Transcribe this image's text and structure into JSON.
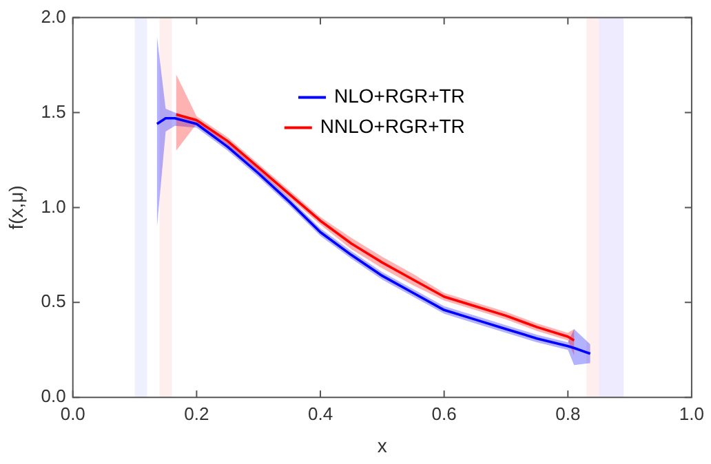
{
  "chart_data": {
    "type": "line",
    "xlabel": "x",
    "ylabel": "f(x,μ)",
    "xlim": [
      0,
      1
    ],
    "xticks": [
      {
        "value": 0,
        "label": "0.0"
      },
      {
        "value": 0.2,
        "label": "0.2"
      },
      {
        "value": 0.4,
        "label": "0.4"
      },
      {
        "value": 0.6,
        "label": "0.6"
      },
      {
        "value": 0.8,
        "label": "0.8"
      },
      {
        "value": 1,
        "label": "1.0"
      }
    ],
    "ylim": [
      0,
      2
    ],
    "yticks": [
      {
        "value": 0,
        "label": "0.0"
      },
      {
        "value": 0.5,
        "label": "0.5"
      },
      {
        "value": 1,
        "label": "1.0"
      },
      {
        "value": 1.5,
        "label": "1.5"
      },
      {
        "value": 2,
        "label": "2.0"
      }
    ],
    "grid": false,
    "legend": "top",
    "line_style": "solid",
    "marker": "none",
    "bands": [
      {
        "axis": "x",
        "from": 0.1,
        "to": 0.12,
        "color": "#eef0ff"
      },
      {
        "axis": "x",
        "from": 0.14,
        "to": 0.16,
        "color": "#ffeeee"
      },
      {
        "axis": "x",
        "from": 0.83,
        "to": 0.87,
        "color": "#ffeeee"
      },
      {
        "axis": "x",
        "from": 0.85,
        "to": 0.89,
        "color": "#eeeaff"
      }
    ],
    "series": [
      {
        "name": "NLO+RGR+TR",
        "color": "#0000ff",
        "x": [
          0.136,
          0.15,
          0.165,
          0.2,
          0.25,
          0.3,
          0.35,
          0.4,
          0.45,
          0.5,
          0.55,
          0.6,
          0.65,
          0.7,
          0.75,
          0.8,
          0.81,
          0.836
        ],
        "values": [
          1.44,
          1.47,
          1.47,
          1.44,
          1.32,
          1.18,
          1.03,
          0.87,
          0.75,
          0.64,
          0.55,
          0.46,
          0.41,
          0.36,
          0.31,
          0.27,
          0.26,
          0.23
        ],
        "lower": [
          0.9,
          1.4,
          1.43,
          1.42,
          1.3,
          1.16,
          1.01,
          0.85,
          0.73,
          0.62,
          0.53,
          0.44,
          0.39,
          0.34,
          0.29,
          0.25,
          0.17,
          0.18
        ],
        "upper": [
          1.9,
          1.52,
          1.5,
          1.46,
          1.34,
          1.2,
          1.05,
          0.89,
          0.77,
          0.66,
          0.57,
          0.48,
          0.43,
          0.38,
          0.33,
          0.29,
          0.36,
          0.28
        ]
      },
      {
        "name": "NNLO+RGR+TR",
        "color": "#ff0000",
        "x": [
          0.167,
          0.2,
          0.25,
          0.3,
          0.35,
          0.4,
          0.45,
          0.5,
          0.55,
          0.6,
          0.65,
          0.7,
          0.75,
          0.8,
          0.81
        ],
        "values": [
          1.49,
          1.46,
          1.35,
          1.21,
          1.07,
          0.93,
          0.81,
          0.71,
          0.62,
          0.53,
          0.48,
          0.43,
          0.37,
          0.32,
          0.3
        ],
        "lower": [
          1.3,
          1.44,
          1.33,
          1.19,
          1.05,
          0.91,
          0.78,
          0.68,
          0.59,
          0.51,
          0.46,
          0.41,
          0.35,
          0.3,
          0.22
        ],
        "upper": [
          1.7,
          1.48,
          1.37,
          1.23,
          1.09,
          0.95,
          0.84,
          0.74,
          0.65,
          0.55,
          0.5,
          0.45,
          0.39,
          0.34,
          0.36
        ]
      }
    ]
  }
}
